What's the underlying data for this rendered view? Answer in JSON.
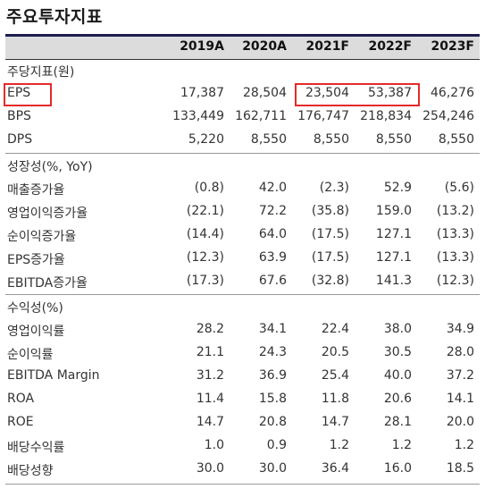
{
  "title": "주요투자지표",
  "columns": [
    "2019A",
    "2020A",
    "2021F",
    "2022F",
    "2023F"
  ],
  "colors": {
    "header_rule": "#1c1c50",
    "header_band": "#dcdcdc",
    "highlight": "#e52a2a"
  },
  "sections": [
    {
      "heading": "주당지표(원)",
      "rows": [
        {
          "label": "EPS",
          "values": [
            "17,387",
            "28,504",
            "23,504",
            "53,387",
            "46,276"
          ]
        },
        {
          "label": "BPS",
          "values": [
            "133,449",
            "162,711",
            "176,747",
            "218,834",
            "254,246"
          ]
        },
        {
          "label": "DPS",
          "values": [
            "5,220",
            "8,550",
            "8,550",
            "8,550",
            "8,550"
          ]
        }
      ]
    },
    {
      "heading": "성장성(%, YoY)",
      "rows": [
        {
          "label": "매출증가율",
          "values": [
            "(0.8)",
            "42.0",
            "(2.3)",
            "52.9",
            "(5.6)"
          ]
        },
        {
          "label": "영업이익증가율",
          "values": [
            "(22.1)",
            "72.2",
            "(35.8)",
            "159.0",
            "(13.2)"
          ]
        },
        {
          "label": "순이익증가율",
          "values": [
            "(14.4)",
            "64.0",
            "(17.5)",
            "127.1",
            "(13.3)"
          ]
        },
        {
          "label": "EPS증가율",
          "values": [
            "(12.3)",
            "63.9",
            "(17.5)",
            "127.1",
            "(13.3)"
          ]
        },
        {
          "label": "EBITDA증가율",
          "values": [
            "(17.3)",
            "67.6",
            "(32.8)",
            "141.3",
            "(12.3)"
          ]
        }
      ]
    },
    {
      "heading": "수익성(%)",
      "rows": [
        {
          "label": "영업이익률",
          "values": [
            "28.2",
            "34.1",
            "22.4",
            "38.0",
            "34.9"
          ]
        },
        {
          "label": "순이익률",
          "values": [
            "21.1",
            "24.3",
            "20.5",
            "30.5",
            "28.0"
          ]
        },
        {
          "label": "EBITDA Margin",
          "values": [
            "31.2",
            "36.9",
            "25.4",
            "40.0",
            "37.2"
          ]
        },
        {
          "label": "ROA",
          "values": [
            "11.4",
            "15.8",
            "11.8",
            "20.6",
            "14.1"
          ]
        },
        {
          "label": "ROE",
          "values": [
            "14.7",
            "20.8",
            "14.7",
            "28.1",
            "20.0"
          ]
        },
        {
          "label": "배당수익률",
          "values": [
            "1.0",
            "0.9",
            "1.2",
            "1.2",
            "1.2"
          ]
        },
        {
          "label": "배당성향",
          "values": [
            "30.0",
            "30.0",
            "36.4",
            "16.0",
            "18.5"
          ]
        }
      ]
    }
  ]
}
